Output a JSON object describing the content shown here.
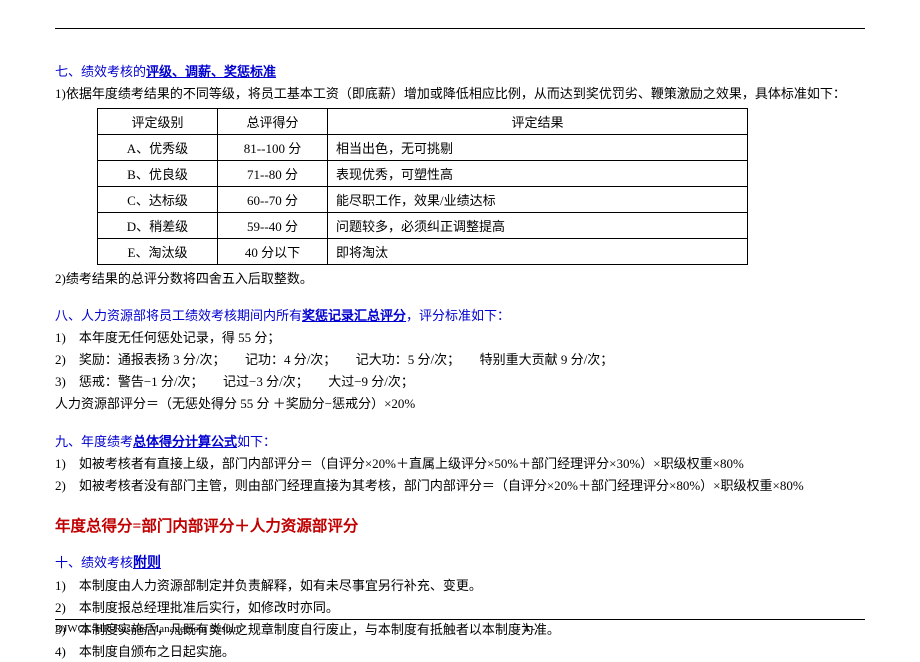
{
  "section7": {
    "head_num": "七、绩效考核的",
    "head_u": "评级、调薪、奖惩标准",
    "intro": "1)依据年度绩考结果的不同等级，将员工基本工资（即底薪）增加或降低相应比例，从而达到奖优罚劣、鞭策激励之效果，具体标准如下：",
    "table": {
      "headers": [
        "评定级别",
        "总评得分",
        "评定结果"
      ],
      "rows": [
        [
          "A、优秀级",
          "81--100 分",
          "相当出色，无可挑剔"
        ],
        [
          "B、优良级",
          "71--80 分",
          "表现优秀，可塑性高"
        ],
        [
          "C、达标级",
          "60--70 分",
          "能尽职工作，效果/业绩达标"
        ],
        [
          "D、稍差级",
          "59--40 分",
          "问题较多，必须纠正调整提高"
        ],
        [
          "E、淘汰级",
          "40 分以下",
          "即将淘汰"
        ]
      ]
    },
    "note2": "2)绩考结果的总评分数将四舍五入后取整数。"
  },
  "section8": {
    "head_num": "八、人力资源部将员工绩效考核期间内所有",
    "head_u": "奖惩记录汇总评分",
    "head_tail": "，评分标准如下：",
    "items": [
      "1)　本年度无任何惩处记录，得 55 分；",
      "2)　奖励：通报表扬 3 分/次；　　记功：4 分/次；　　记大功：5 分/次；　　特别重大贡献  9 分/次；",
      "3)　惩戒：警告−1 分/次；　　记过−3 分/次；　　大过−9 分/次；"
    ],
    "formula": "人力资源部评分＝（无惩处得分 55 分 ＋奖励分−惩戒分）×20%"
  },
  "section9": {
    "head_num": "九、年度绩考",
    "head_u": "总体得分计算公式",
    "head_tail": "如下：",
    "items": [
      "1)　如被考核者有直接上级，部门内部评分＝（自评分×20%＋直属上级评分×50%＋部门经理评分×30%）×职级权重×80%",
      "2)　如被考核者没有部门主管，则由部门经理直接为其考核，部门内部评分＝（自评分×20%＋部门经理评分×80%）×职级权重×80%"
    ]
  },
  "main_formula": "年度总得分=部门内部评分＋人力资源部评分",
  "section10": {
    "head_num": "十、绩效考核",
    "head_u": "附则",
    "items": [
      "1)　本制度由人力资源部制定并负责解释，如有未尽事宜另行补充、变更。",
      "2)　本制度报总经理批准后实行，如修改时亦同。",
      "3)　本制度实施后，凡既有类似之规章制度自行废止，与本制度有抵触者以本制度为准。",
      "4)　本制度自颁布之日起实施。"
    ]
  },
  "footer": {
    "left": "DJWCL-HR-Results Management System",
    "page": "- 4 -"
  }
}
